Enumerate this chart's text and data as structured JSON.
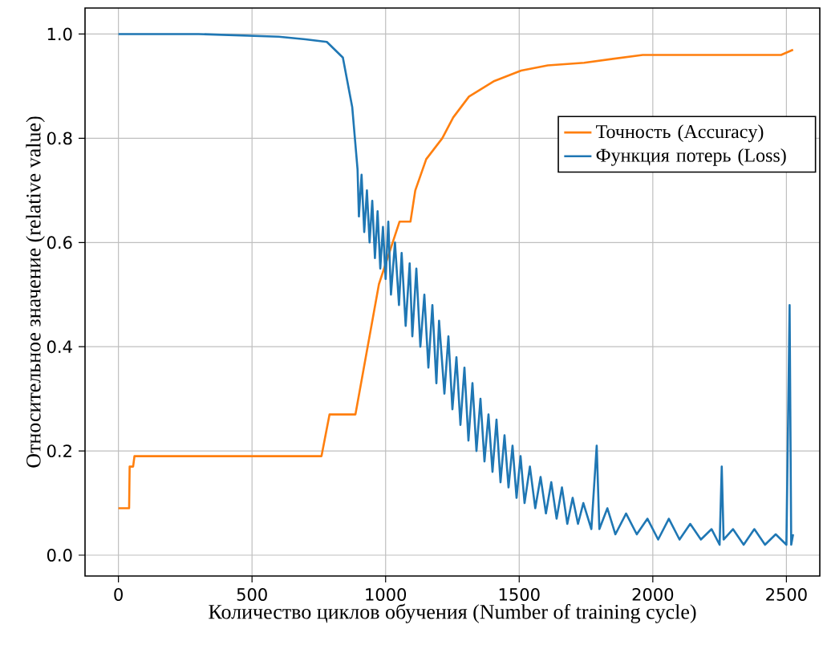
{
  "chart_data": {
    "type": "line",
    "xlabel": "Количество циклов обучения (Number of training cycle)",
    "ylabel": "Относительное значение (relative value)",
    "xlim": [
      -125,
      2625
    ],
    "ylim": [
      -0.04,
      1.05
    ],
    "xticks": [
      0,
      500,
      1000,
      1500,
      2000,
      2500
    ],
    "yticks": [
      {
        "value": 0,
        "label": "0.0"
      },
      {
        "value": 0.2,
        "label": "0.2"
      },
      {
        "value": 0.4,
        "label": "0.4"
      },
      {
        "value": 0.6,
        "label": "0.6"
      },
      {
        "value": 0.8,
        "label": "0.8"
      },
      {
        "value": 1,
        "label": "1.0"
      }
    ],
    "grid": true,
    "legend": "right",
    "series": [
      {
        "name": "Точность (Accuracy)",
        "color": "#ff7f0e",
        "x": [
          0,
          40,
          42,
          55,
          60,
          760,
          790,
          887,
          975,
          1052,
          1093,
          1111,
          1152,
          1212,
          1253,
          1312,
          1407,
          1507,
          1607,
          1743,
          1962,
          2480,
          2525
        ],
        "values": [
          0.09,
          0.09,
          0.17,
          0.17,
          0.19,
          0.19,
          0.27,
          0.27,
          0.52,
          0.64,
          0.64,
          0.7,
          0.76,
          0.8,
          0.84,
          0.88,
          0.91,
          0.93,
          0.94,
          0.945,
          0.96,
          0.96,
          0.97
        ]
      },
      {
        "name": "Функция потерь (Loss)",
        "color": "#1f77b4",
        "x": [
          0,
          300,
          600,
          700,
          780,
          840,
          875,
          895,
          900,
          910,
          920,
          930,
          940,
          950,
          960,
          970,
          980,
          990,
          1000,
          1010,
          1020,
          1035,
          1050,
          1060,
          1075,
          1090,
          1100,
          1115,
          1130,
          1145,
          1160,
          1175,
          1190,
          1200,
          1220,
          1235,
          1250,
          1265,
          1280,
          1295,
          1310,
          1325,
          1340,
          1355,
          1370,
          1385,
          1400,
          1415,
          1430,
          1445,
          1460,
          1475,
          1490,
          1505,
          1520,
          1540,
          1560,
          1580,
          1600,
          1620,
          1640,
          1660,
          1680,
          1700,
          1720,
          1740,
          1770,
          1790,
          1800,
          1830,
          1860,
          1900,
          1940,
          1980,
          2020,
          2060,
          2100,
          2140,
          2180,
          2220,
          2250,
          2258,
          2265,
          2300,
          2340,
          2380,
          2420,
          2460,
          2500,
          2512,
          2518,
          2525
        ],
        "values": [
          1.0,
          1.0,
          0.995,
          0.99,
          0.985,
          0.955,
          0.86,
          0.74,
          0.65,
          0.73,
          0.62,
          0.7,
          0.6,
          0.68,
          0.57,
          0.66,
          0.55,
          0.63,
          0.53,
          0.64,
          0.5,
          0.6,
          0.48,
          0.58,
          0.44,
          0.56,
          0.42,
          0.55,
          0.4,
          0.5,
          0.36,
          0.48,
          0.33,
          0.45,
          0.31,
          0.42,
          0.28,
          0.38,
          0.25,
          0.36,
          0.22,
          0.33,
          0.2,
          0.3,
          0.18,
          0.27,
          0.16,
          0.26,
          0.14,
          0.23,
          0.13,
          0.21,
          0.11,
          0.19,
          0.1,
          0.17,
          0.09,
          0.15,
          0.08,
          0.14,
          0.07,
          0.13,
          0.06,
          0.11,
          0.06,
          0.1,
          0.05,
          0.21,
          0.05,
          0.09,
          0.04,
          0.08,
          0.04,
          0.07,
          0.03,
          0.07,
          0.03,
          0.06,
          0.03,
          0.05,
          0.02,
          0.17,
          0.03,
          0.05,
          0.02,
          0.05,
          0.02,
          0.04,
          0.02,
          0.48,
          0.02,
          0.04
        ]
      }
    ]
  }
}
